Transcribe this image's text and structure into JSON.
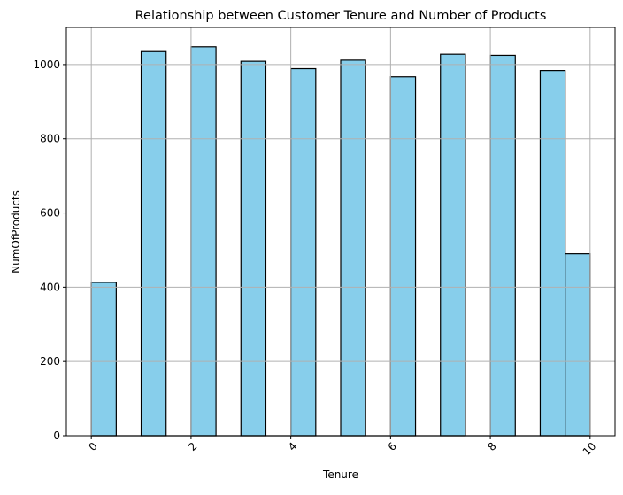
{
  "chart_data": {
    "type": "bar",
    "title": "Relationship between Customer Tenure and Number of Products",
    "xlabel": "Tenure",
    "ylabel": "NumOfProducts",
    "xlim": [
      -0.5,
      10.5
    ],
    "ylim": [
      0,
      1100
    ],
    "xticks": [
      0,
      2,
      4,
      6,
      8,
      10
    ],
    "xtick_labels": [
      "0",
      "2",
      "4",
      "6",
      "8",
      "10"
    ],
    "xtick_rotation": 45,
    "yticks": [
      0,
      200,
      400,
      600,
      800,
      1000
    ],
    "ytick_labels": [
      "0",
      "200",
      "400",
      "600",
      "800",
      "1000"
    ],
    "grid": true,
    "bins": [
      {
        "x0": 0.0,
        "x1": 0.5,
        "value": 413
      },
      {
        "x0": 0.5,
        "x1": 1.0,
        "value": 0
      },
      {
        "x0": 1.0,
        "x1": 1.5,
        "value": 1035
      },
      {
        "x0": 1.5,
        "x1": 2.0,
        "value": 0
      },
      {
        "x0": 2.0,
        "x1": 2.5,
        "value": 1048
      },
      {
        "x0": 2.5,
        "x1": 3.0,
        "value": 0
      },
      {
        "x0": 3.0,
        "x1": 3.5,
        "value": 1009
      },
      {
        "x0": 3.5,
        "x1": 4.0,
        "value": 0
      },
      {
        "x0": 4.0,
        "x1": 4.5,
        "value": 989
      },
      {
        "x0": 4.5,
        "x1": 5.0,
        "value": 0
      },
      {
        "x0": 5.0,
        "x1": 5.5,
        "value": 1012
      },
      {
        "x0": 5.5,
        "x1": 6.0,
        "value": 0
      },
      {
        "x0": 6.0,
        "x1": 6.5,
        "value": 967
      },
      {
        "x0": 6.5,
        "x1": 7.0,
        "value": 0
      },
      {
        "x0": 7.0,
        "x1": 7.5,
        "value": 1028
      },
      {
        "x0": 7.5,
        "x1": 8.0,
        "value": 0
      },
      {
        "x0": 8.0,
        "x1": 8.5,
        "value": 1025
      },
      {
        "x0": 8.5,
        "x1": 9.0,
        "value": 0
      },
      {
        "x0": 9.0,
        "x1": 9.5,
        "value": 984
      },
      {
        "x0": 9.5,
        "x1": 10.0,
        "value": 490
      }
    ],
    "colors": {
      "bar_fill": "#87ceeb",
      "bar_edge": "#000000",
      "grid": "#b0b0b0"
    }
  }
}
